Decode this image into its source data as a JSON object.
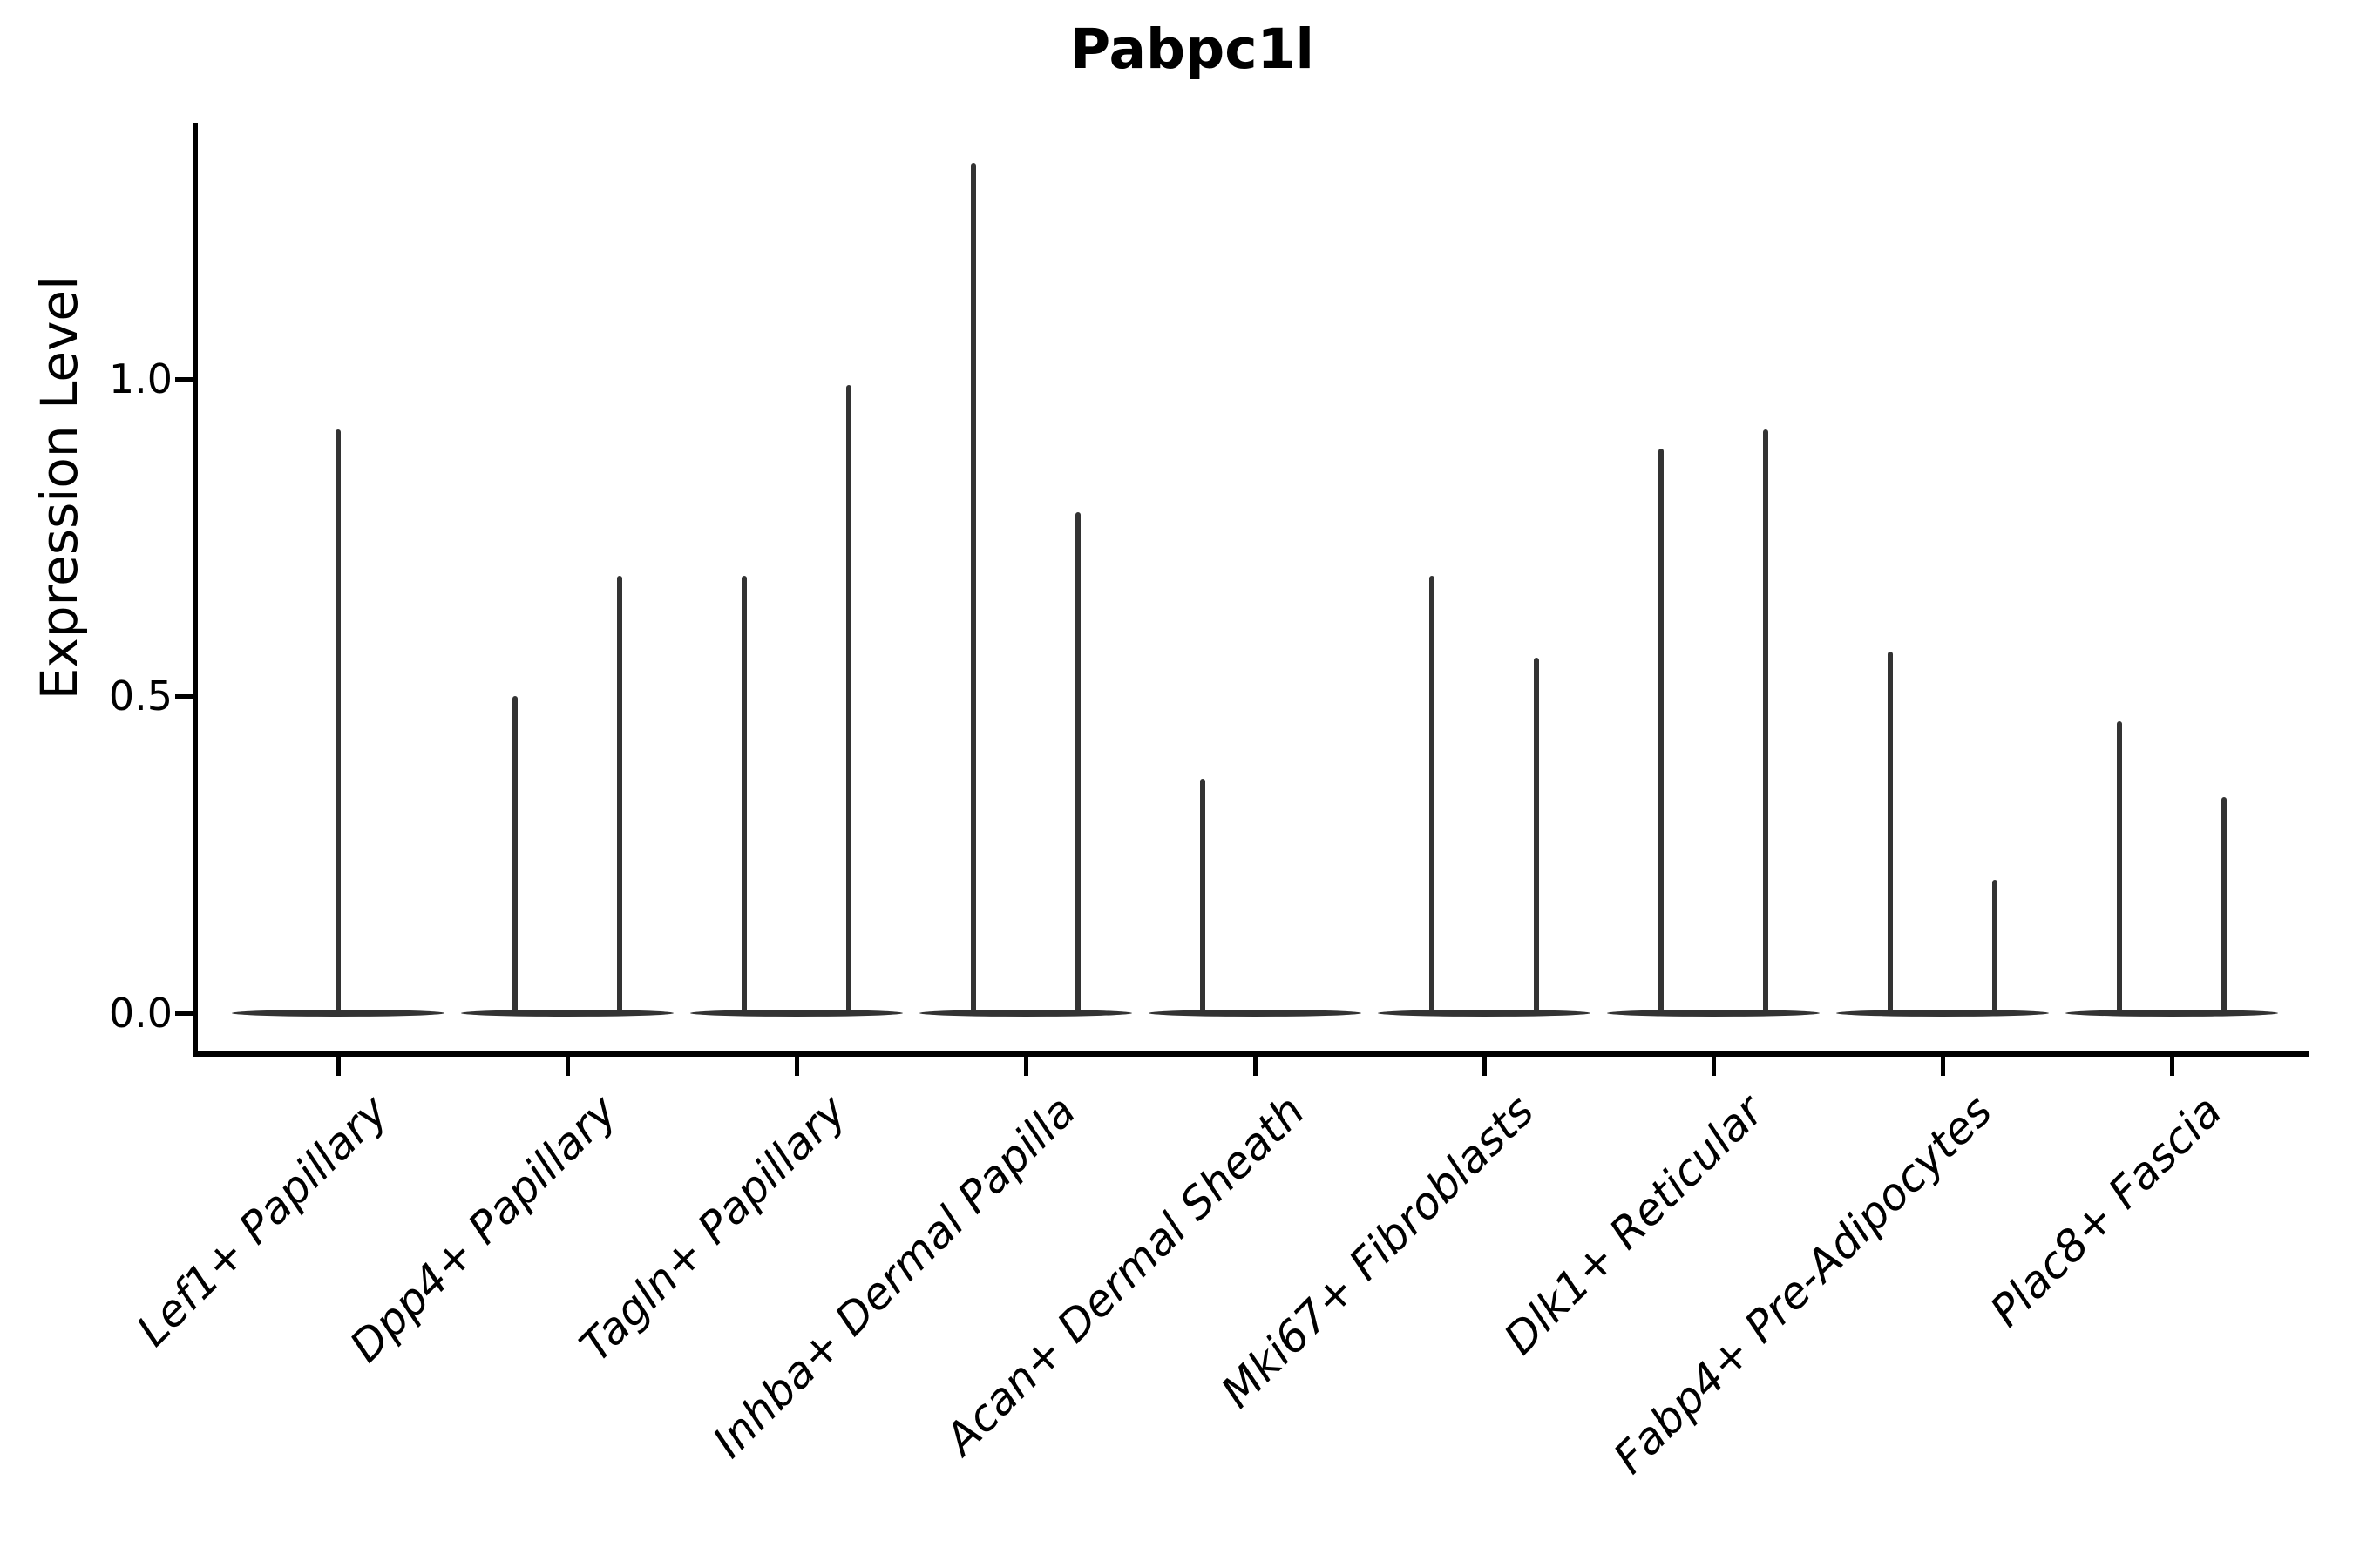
{
  "title": "Pabpc1l",
  "y_axis": {
    "label": "Expression Level",
    "tick_labels": [
      "1.0",
      "0.5",
      "0.0"
    ]
  },
  "chart_data": {
    "type": "violin",
    "title": "Pabpc1l",
    "xlabel": "",
    "ylabel": "Expression Level",
    "ylim": [
      0,
      1.4
    ],
    "yticks": [
      1.0,
      0.5,
      0.0
    ],
    "grid": false,
    "legend_position": "none",
    "categories": [
      "Lef1+ Papillary",
      "Dpp4+ Papillary",
      "Tagln+ Papillary",
      "Inhba+ Dermal Papilla",
      "Acan+ Dermal Sheath",
      "Mki67+ Fibroblasts",
      "Dlk1+ Reticular",
      "Fabp4+ Pre-Adipocytes",
      "Plac8+ Fascia"
    ],
    "violins": [
      {
        "category": "Lef1+ Papillary",
        "spikes": [
          {
            "side": "center",
            "max_expression": 0.92
          }
        ]
      },
      {
        "category": "Dpp4+ Papillary",
        "spikes": [
          {
            "side": "left",
            "max_expression": 0.5
          },
          {
            "side": "right",
            "max_expression": 0.69
          }
        ]
      },
      {
        "category": "Tagln+ Papillary",
        "spikes": [
          {
            "side": "left",
            "max_expression": 0.69
          },
          {
            "side": "right",
            "max_expression": 0.99
          }
        ]
      },
      {
        "category": "Inhba+ Dermal Papilla",
        "spikes": [
          {
            "side": "left",
            "max_expression": 1.34
          },
          {
            "side": "right",
            "max_expression": 0.79
          }
        ]
      },
      {
        "category": "Acan+ Dermal Sheath",
        "spikes": [
          {
            "side": "left",
            "max_expression": 0.37
          }
        ]
      },
      {
        "category": "Mki67+ Fibroblasts",
        "spikes": [
          {
            "side": "left",
            "max_expression": 0.69
          },
          {
            "side": "right",
            "max_expression": 0.56
          }
        ]
      },
      {
        "category": "Dlk1+ Reticular",
        "spikes": [
          {
            "side": "left",
            "max_expression": 0.89
          },
          {
            "side": "right",
            "max_expression": 0.92
          }
        ]
      },
      {
        "category": "Fabp4+ Pre-Adipocytes",
        "spikes": [
          {
            "side": "left",
            "max_expression": 0.57
          },
          {
            "side": "right",
            "max_expression": 0.21
          }
        ]
      },
      {
        "category": "Plac8+ Fascia",
        "spikes": [
          {
            "side": "left",
            "max_expression": 0.46
          },
          {
            "side": "right",
            "max_expression": 0.34
          }
        ]
      }
    ],
    "colors": {
      "violin": "#333333",
      "axis": "#000000",
      "text": "#000000",
      "background": "#ffffff"
    }
  }
}
